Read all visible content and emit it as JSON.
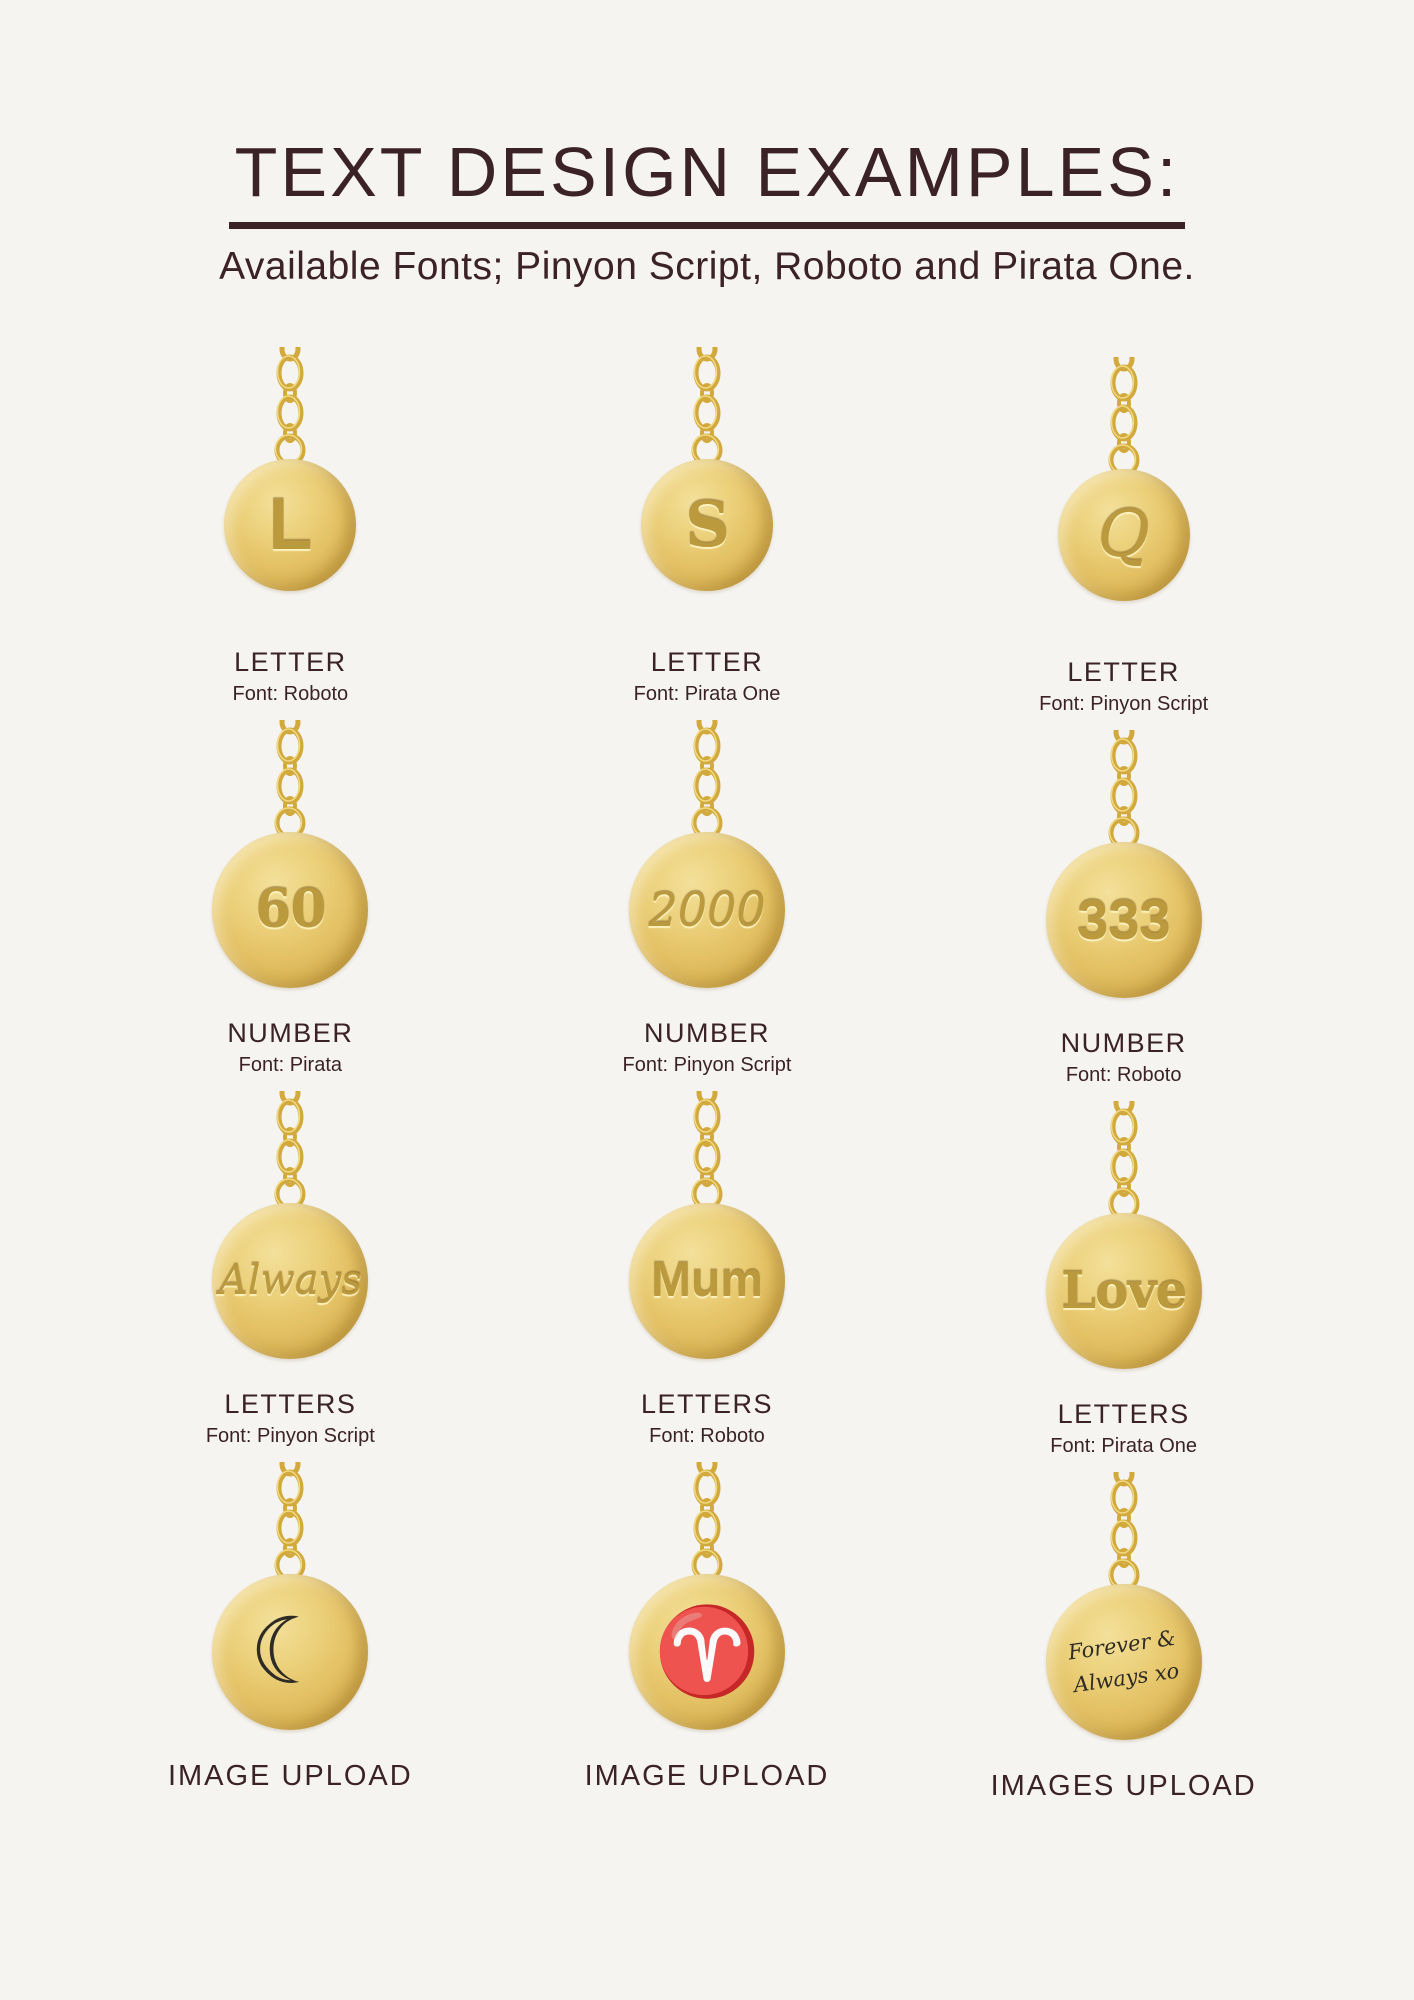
{
  "header": {
    "title": "TEXT DESIGN EXAMPLES:",
    "subtitle": "Available Fonts; Pinyon Script, Roboto and Pirata One."
  },
  "colors": {
    "background": "#f5f4f1",
    "text": "#3b2226",
    "disc_gold": "#e3c164",
    "disc_gold_light": "#f3e09a",
    "disc_gold_dark": "#c59b39",
    "chain_gold": "#d2a93c",
    "engraving_gold": "#bb9a3e",
    "engraving_dark": "#2f2b25"
  },
  "pendants": [
    {
      "engraving": "L",
      "style": "roboto",
      "tone": "gold",
      "label": "LETTER",
      "font_label": "Font: Roboto"
    },
    {
      "engraving": "S",
      "style": "pirata",
      "tone": "gold",
      "label": "LETTER",
      "font_label": "Font: Pirata One"
    },
    {
      "engraving": "Q",
      "style": "pinyon",
      "tone": "gold",
      "label": "LETTER",
      "font_label": "Font: Pinyon Script"
    },
    {
      "engraving": "60",
      "style": "pirata",
      "tone": "gold",
      "label": "NUMBER",
      "font_label": "Font: Pirata"
    },
    {
      "engraving": "2000",
      "style": "pinyon",
      "tone": "gold",
      "label": "NUMBER",
      "font_label": "Font: Pinyon Script"
    },
    {
      "engraving": "333",
      "style": "roboto",
      "tone": "gold",
      "label": "NUMBER",
      "font_label": "Font: Roboto"
    },
    {
      "engraving": "Always",
      "style": "pinyon",
      "tone": "gold",
      "label": "LETTERS",
      "font_label": "Font: Pinyon Script"
    },
    {
      "engraving": "Mum",
      "style": "roboto",
      "tone": "gold",
      "label": "LETTERS",
      "font_label": "Font: Roboto"
    },
    {
      "engraving": "Love",
      "style": "pirata",
      "tone": "gold",
      "label": "LETTERS",
      "font_label": "Font: Pirata One"
    },
    {
      "engraving": "☾",
      "icon": "crescent-moon-icon",
      "tone": "dark",
      "label": "IMAGE UPLOAD"
    },
    {
      "engraving": "♈",
      "icon": "aries-zodiac-icon",
      "tone": "dark",
      "label": "IMAGE UPLOAD"
    },
    {
      "engraving_lines": [
        "Forever &",
        "Always xo"
      ],
      "style": "pinyon",
      "tone": "dark",
      "label": "IMAGES UPLOAD"
    }
  ]
}
